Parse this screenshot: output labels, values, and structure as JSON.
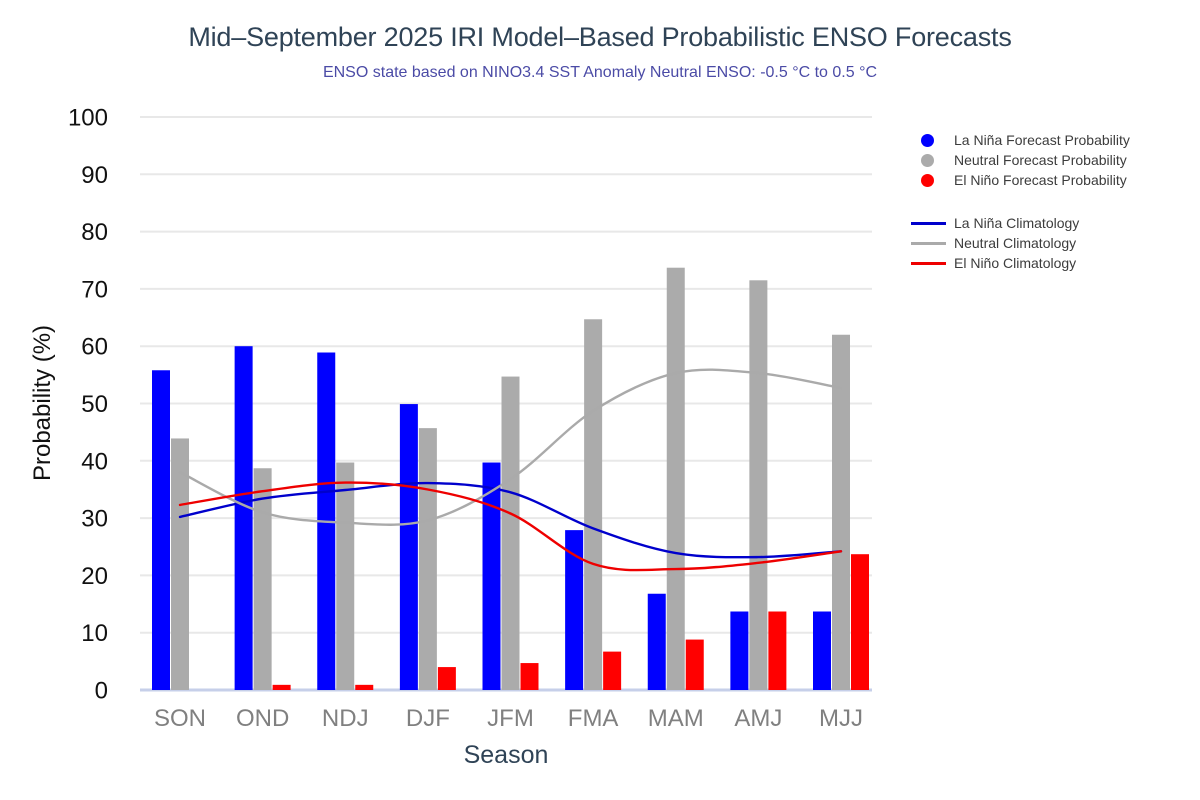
{
  "title": "Mid–September 2025 IRI Model–Based Probabilistic ENSO Forecasts",
  "subtitle": "ENSO state based on NINO3.4 SST Anomaly Neutral ENSO: -0.5 °C to 0.5 °C",
  "legend": {
    "forecast_items": [
      {
        "name": "la-nina-forecast",
        "label": "La Niña Forecast Probability",
        "color": "#0000ff"
      },
      {
        "name": "neutral-forecast",
        "label": "Neutral Forecast Probability",
        "color": "#ababab"
      },
      {
        "name": "el-nino-forecast",
        "label": "El Niño Forecast Probability",
        "color": "#ff0000"
      }
    ],
    "climatology_items": [
      {
        "name": "la-nina-climatology",
        "label": "La Niña Climatology",
        "color": "#0000cc"
      },
      {
        "name": "neutral-climatology",
        "label": "Neutral Climatology",
        "color": "#aaaaaa"
      },
      {
        "name": "el-nino-climatology",
        "label": "El Niño Climatology",
        "color": "#ee0000"
      }
    ]
  },
  "chart_data": {
    "type": "bar",
    "categories": [
      "SON",
      "OND",
      "NDJ",
      "DJF",
      "JFM",
      "FMA",
      "MAM",
      "AMJ",
      "MJJ"
    ],
    "bar_series": [
      {
        "name": "La Niña Forecast Probability",
        "color": "#0000ff",
        "values": [
          55.8,
          60.0,
          58.9,
          49.9,
          39.7,
          27.9,
          16.8,
          13.7,
          13.7
        ]
      },
      {
        "name": "Neutral Forecast Probability",
        "color": "#ababab",
        "values": [
          43.9,
          38.7,
          39.7,
          45.7,
          54.7,
          64.7,
          73.7,
          71.5,
          62.0
        ]
      },
      {
        "name": "El Niño Forecast Probability",
        "color": "#ff0000",
        "values": [
          0,
          0.9,
          0.9,
          4.0,
          4.7,
          6.7,
          8.8,
          13.7,
          23.7
        ]
      }
    ],
    "line_series": [
      {
        "name": "La Niña Climatology",
        "color": "#0000cc",
        "values": [
          30.2,
          33.4,
          34.9,
          36.1,
          34.5,
          28.2,
          23.9,
          23.2,
          24.2
        ]
      },
      {
        "name": "Neutral Climatology",
        "color": "#aaaaaa",
        "values": [
          38.0,
          31.0,
          29.2,
          29.6,
          36.8,
          48.7,
          55.3,
          55.3,
          52.7
        ]
      },
      {
        "name": "El Niño Climatology",
        "color": "#ee0000",
        "values": [
          32.3,
          34.7,
          36.2,
          35.0,
          30.8,
          22.0,
          21.1,
          22.2,
          24.2
        ]
      }
    ],
    "xlabel": "Season",
    "ylabel": "Probability (%)",
    "ylim": [
      0,
      100
    ],
    "ytick_step": 10,
    "grid": true,
    "legend_position": "right"
  },
  "style_colors": {
    "grid": "#e8e8e8",
    "baseline": "#c6cfe9",
    "title": "#2f4356",
    "subtitle": "#4b4ba6",
    "ytick_label": "#111111",
    "xtick_label": "#808080",
    "axis_title": "#111111",
    "xlabel_title": "#2f4356",
    "legend_text": "#3c3c3c"
  }
}
